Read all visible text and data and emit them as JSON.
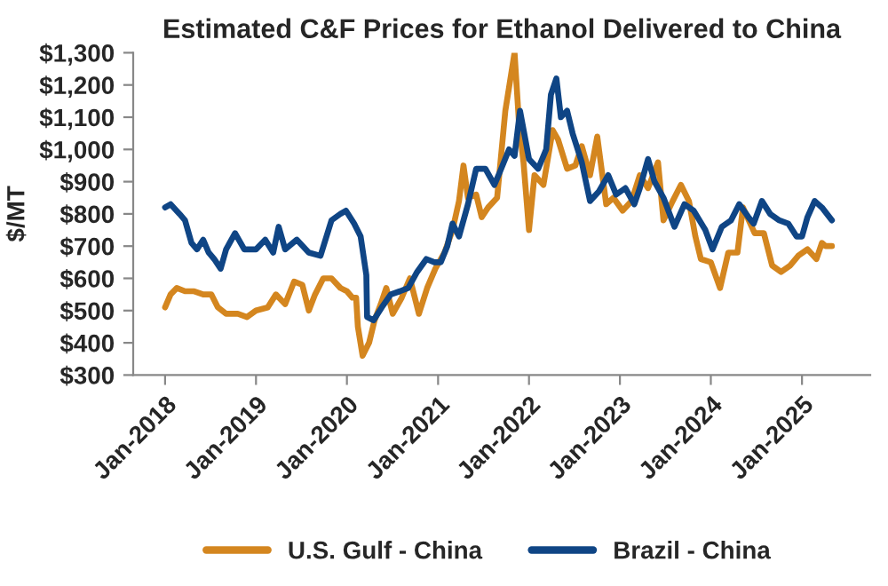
{
  "chart_data": {
    "type": "line",
    "title": "Estimated C&F Prices for Ethanol Delivered to China",
    "ylabel": "$/MT",
    "xlim": [
      "2017-08-26",
      "2025-10-02"
    ],
    "ylim": [
      300,
      1300
    ],
    "xticks": [
      {
        "value": "2018-01-01",
        "label": "Jan-2018"
      },
      {
        "value": "2019-01-01",
        "label": "Jan-2019"
      },
      {
        "value": "2020-01-01",
        "label": "Jan-2020"
      },
      {
        "value": "2021-01-01",
        "label": "Jan-2021"
      },
      {
        "value": "2022-01-01",
        "label": "Jan-2022"
      },
      {
        "value": "2023-01-01",
        "label": "Jan-2023"
      },
      {
        "value": "2024-01-01",
        "label": "Jan-2024"
      },
      {
        "value": "2025-01-01",
        "label": "Jan-2025"
      }
    ],
    "yticks": [
      {
        "value": 300,
        "label": "$300"
      },
      {
        "value": 400,
        "label": "$400"
      },
      {
        "value": 500,
        "label": "$500"
      },
      {
        "value": 600,
        "label": "$600"
      },
      {
        "value": 700,
        "label": "$700"
      },
      {
        "value": 800,
        "label": "$800"
      },
      {
        "value": 900,
        "label": "$900"
      },
      {
        "value": 1000,
        "label": "$1,000"
      },
      {
        "value": 1100,
        "label": "$1,100"
      },
      {
        "value": 1200,
        "label": "$1,200"
      },
      {
        "value": 1300,
        "label": "$1,300"
      }
    ],
    "grid": false,
    "legend": "bottom",
    "marker": "none",
    "line_style": "solid",
    "series": [
      {
        "name": "U.S. Gulf - China",
        "color": "#d4861f",
        "x": [
          "2018-01-01",
          "2018-01-23",
          "2018-02-17",
          "2018-03-22",
          "2018-04-28",
          "2018-06-03",
          "2018-07-06",
          "2018-08-01",
          "2018-09-03",
          "2018-10-20",
          "2018-11-26",
          "2019-01-01",
          "2019-02-17",
          "2019-03-22",
          "2019-04-28",
          "2019-06-03",
          "2019-07-06",
          "2019-08-01",
          "2019-08-26",
          "2019-09-28",
          "2019-10-31",
          "2019-12-06",
          "2020-01-01",
          "2020-01-23",
          "2020-02-07",
          "2020-02-14",
          "2020-03-04",
          "2020-03-30",
          "2020-04-21",
          "2020-05-16",
          "2020-06-07",
          "2020-07-03",
          "2020-08-08",
          "2020-09-10",
          "2020-10-16",
          "2020-11-18",
          "2020-12-21",
          "2021-01-27",
          "2021-02-28",
          "2021-03-26",
          "2021-04-13",
          "2021-05-01",
          "2021-06-03",
          "2021-06-25",
          "2021-07-21",
          "2021-08-26",
          "2021-09-28",
          "2021-11-04",
          "2021-11-22",
          "2021-12-10",
          "2022-01-01",
          "2022-01-23",
          "2022-02-28",
          "2022-04-06",
          "2022-04-28",
          "2022-06-03",
          "2022-07-06",
          "2022-08-01",
          "2022-09-03",
          "2022-10-02",
          "2022-11-07",
          "2022-12-06",
          "2023-01-12",
          "2023-02-17",
          "2023-03-22",
          "2023-04-24",
          "2023-06-03",
          "2023-06-25",
          "2023-08-01",
          "2023-09-03",
          "2023-10-05",
          "2023-10-31",
          "2023-11-22",
          "2024-01-01",
          "2024-02-07",
          "2024-03-11",
          "2024-04-17",
          "2024-05-09",
          "2024-06-25",
          "2024-08-01",
          "2024-09-03",
          "2024-10-09",
          "2024-11-15",
          "2024-12-17",
          "2025-01-23",
          "2025-02-28",
          "2025-03-22",
          "2025-04-06",
          "2025-05-01"
        ],
        "values": [
          510,
          550,
          570,
          560,
          560,
          550,
          550,
          510,
          490,
          490,
          480,
          500,
          510,
          550,
          520,
          590,
          580,
          500,
          550,
          600,
          600,
          570,
          560,
          540,
          540,
          450,
          360,
          400,
          470,
          520,
          570,
          490,
          540,
          600,
          490,
          570,
          630,
          680,
          750,
          840,
          950,
          850,
          860,
          790,
          820,
          850,
          1120,
          1300,
          1080,
          960,
          750,
          920,
          890,
          1060,
          1030,
          940,
          950,
          1010,
          920,
          1040,
          830,
          850,
          810,
          840,
          920,
          880,
          960,
          780,
          840,
          890,
          840,
          730,
          660,
          650,
          570,
          680,
          680,
          820,
          740,
          740,
          640,
          620,
          640,
          670,
          690,
          660,
          710,
          700,
          700
        ]
      },
      {
        "name": "Brazil - China",
        "color": "#0f4585",
        "x": [
          "2018-01-01",
          "2018-01-23",
          "2018-02-28",
          "2018-03-22",
          "2018-04-17",
          "2018-05-09",
          "2018-06-03",
          "2018-06-25",
          "2018-07-17",
          "2018-08-12",
          "2018-09-03",
          "2018-10-09",
          "2018-11-15",
          "2019-01-01",
          "2019-02-07",
          "2019-03-11",
          "2019-04-02",
          "2019-04-28",
          "2019-06-14",
          "2019-08-01",
          "2019-09-17",
          "2019-10-31",
          "2019-12-06",
          "2019-12-28",
          "2020-01-30",
          "2020-02-25",
          "2020-03-19",
          "2020-03-22",
          "2020-04-17",
          "2020-05-20",
          "2020-06-25",
          "2020-08-01",
          "2020-09-03",
          "2020-10-09",
          "2020-11-15",
          "2020-12-17",
          "2021-01-12",
          "2021-02-07",
          "2021-02-28",
          "2021-03-26",
          "2021-05-01",
          "2021-06-03",
          "2021-07-10",
          "2021-08-15",
          "2021-09-06",
          "2021-10-13",
          "2021-11-04",
          "2021-11-26",
          "2022-01-01",
          "2022-02-07",
          "2022-03-11",
          "2022-03-30",
          "2022-04-21",
          "2022-05-09",
          "2022-06-03",
          "2022-06-25",
          "2022-08-01",
          "2022-09-03",
          "2022-10-09",
          "2022-11-15",
          "2022-12-17",
          "2023-01-23",
          "2023-02-28",
          "2023-03-22",
          "2023-04-24",
          "2023-05-20",
          "2023-06-25",
          "2023-08-08",
          "2023-09-17",
          "2023-10-24",
          "2023-12-10",
          "2024-01-08",
          "2024-02-14",
          "2024-03-22",
          "2024-04-24",
          "2024-05-31",
          "2024-06-21",
          "2024-07-24",
          "2024-08-26",
          "2024-10-02",
          "2024-11-07",
          "2024-12-10",
          "2025-01-01",
          "2025-01-23",
          "2025-02-21",
          "2025-03-22",
          "2025-05-01"
        ],
        "values": [
          820,
          830,
          800,
          780,
          710,
          690,
          720,
          680,
          660,
          630,
          690,
          740,
          690,
          690,
          720,
          680,
          760,
          690,
          720,
          680,
          670,
          780,
          800,
          810,
          770,
          730,
          610,
          480,
          470,
          510,
          550,
          560,
          570,
          620,
          660,
          650,
          650,
          700,
          770,
          730,
          830,
          940,
          940,
          890,
          930,
          1000,
          980,
          1120,
          970,
          940,
          1000,
          1170,
          1220,
          1100,
          1120,
          1050,
          960,
          840,
          870,
          920,
          860,
          880,
          830,
          880,
          970,
          900,
          850,
          760,
          830,
          810,
          750,
          690,
          760,
          780,
          830,
          790,
          770,
          840,
          800,
          780,
          770,
          730,
          730,
          790,
          840,
          820,
          780
        ]
      }
    ]
  }
}
